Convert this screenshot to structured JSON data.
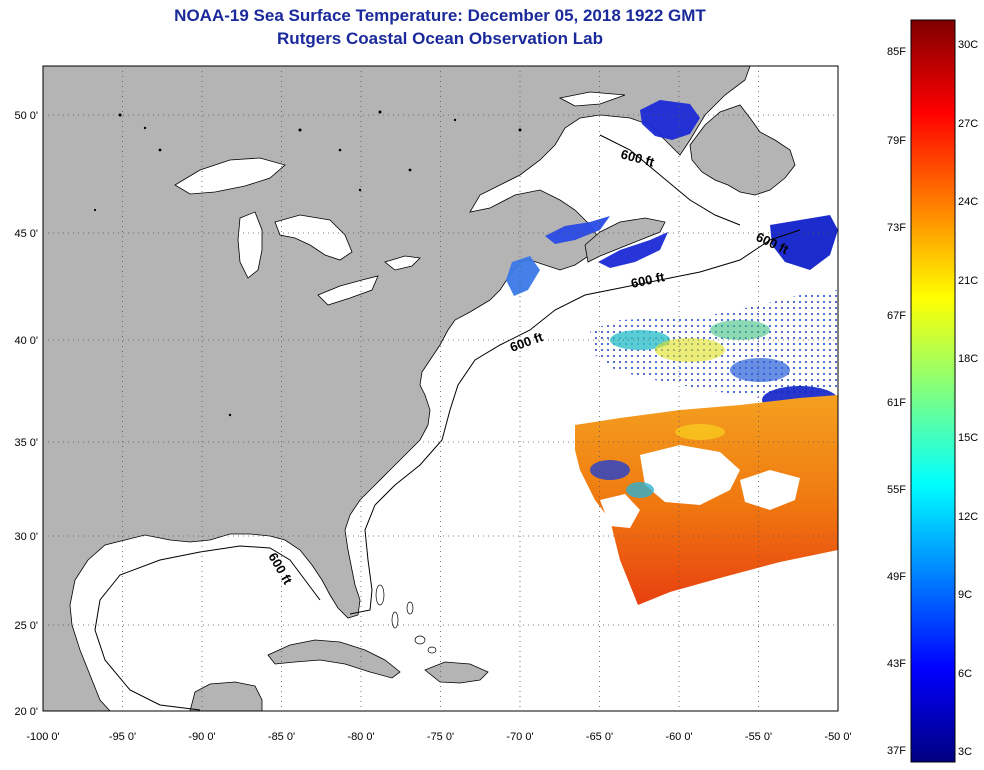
{
  "title": "NOAA-19 Sea Surface Temperature:  December 05, 2018 1922 GMT",
  "subtitle": "Rutgers Coastal Ocean Observation Lab",
  "map": {
    "lon_ticks": [
      "-100 0'",
      "-95 0'",
      "-90 0'",
      "-85 0'",
      "-80 0'",
      "-75 0'",
      "-70 0'",
      "-65 0'",
      "-60 0'",
      "-55 0'",
      "-50 0'"
    ],
    "lat_ticks": [
      "50 0'",
      "45 0'",
      "40 0'",
      "35 0'",
      "30 0'",
      "25 0'",
      "20 0'"
    ],
    "isobath_labels": [
      "600 ft",
      "600 ft",
      "600 ft",
      "600 ft",
      "600 ft"
    ],
    "land_color": "#b4b4b4",
    "ocean_color": "#ffffff"
  },
  "colorbar": {
    "fahrenheit_labels": [
      "85F",
      "79F",
      "73F",
      "67F",
      "61F",
      "55F",
      "49F",
      "43F",
      "37F"
    ],
    "celsius_labels": [
      "30C",
      "27C",
      "24C",
      "21C",
      "18C",
      "15C",
      "12C",
      "9C",
      "6C",
      "3C"
    ],
    "colors": [
      "#00007f",
      "#0000ff",
      "#0080ff",
      "#00ffff",
      "#80ff80",
      "#ffff00",
      "#ff8000",
      "#ff0000",
      "#7f0000"
    ]
  }
}
